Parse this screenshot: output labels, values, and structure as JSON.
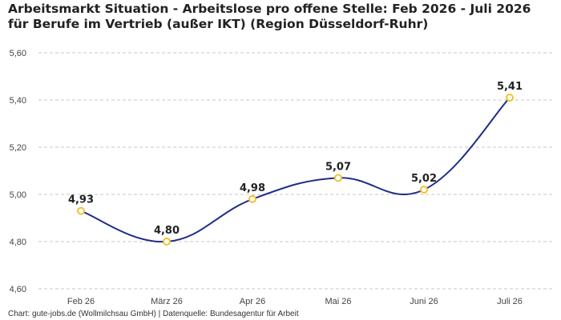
{
  "chart_data": {
    "type": "line",
    "title": "Arbeitsmarkt Situation - Arbeitslose pro offene Stelle: Feb 2026 - Juli 2026 für Berufe im Vertrieb (außer IKT) (Region Düsseldorf-Ruhr)",
    "categories": [
      "Feb 26",
      "März 26",
      "Apr 26",
      "Mai 26",
      "Juni 26",
      "Juli 26"
    ],
    "values": [
      4.93,
      4.8,
      4.98,
      5.07,
      5.02,
      5.41
    ],
    "value_labels": [
      "4,93",
      "4,80",
      "4,98",
      "5,07",
      "5,02",
      "5,41"
    ],
    "y_ticks": [
      4.6,
      4.8,
      5.0,
      5.2,
      5.4,
      5.6
    ],
    "y_tick_labels": [
      "4,60",
      "4,80",
      "5,00",
      "5,20",
      "5,40",
      "5,60"
    ],
    "ylim": [
      4.6,
      5.6
    ],
    "grid": true,
    "legend": "none",
    "colors": {
      "line": "#1f2d86",
      "marker_stroke": "#f2c12e",
      "marker_fill": "#ffffff"
    }
  },
  "footer": "Chart: gute-jobs.de (Wollmilchsau GmbH) | Datenquelle: Bundesagentur für Arbeit"
}
